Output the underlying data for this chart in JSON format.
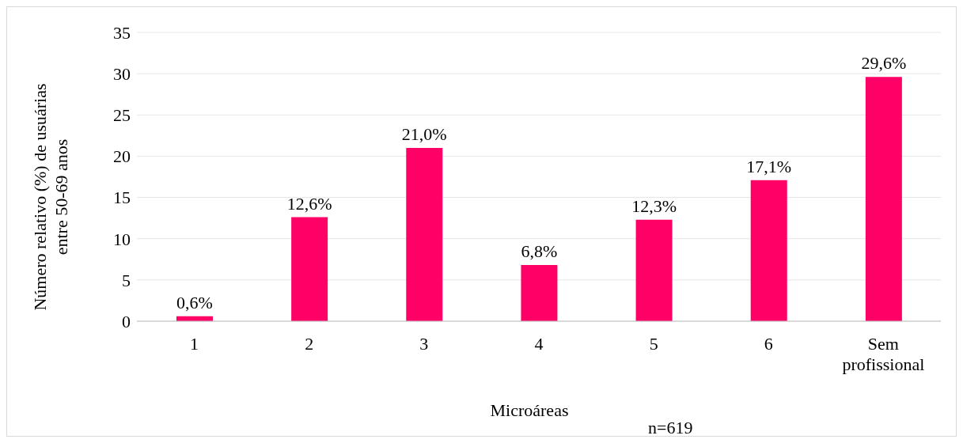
{
  "chart_data": {
    "type": "bar",
    "xlabel": "Microáreas",
    "ylabel": "Número relativo (%) de usuárias entre 50-69 anos",
    "categories": [
      "1",
      "2",
      "3",
      "4",
      "5",
      "6",
      "Sem profissional"
    ],
    "values": [
      0.6,
      12.6,
      21.0,
      6.8,
      12.3,
      17.1,
      29.6
    ],
    "value_labels": [
      "0,6%",
      "12,6%",
      "21,0%",
      "6,8%",
      "12,3%",
      "17,1%",
      "29,6%"
    ],
    "color": "#ff0066",
    "ylim": [
      0,
      35
    ],
    "yticks": [
      0,
      5,
      10,
      15,
      20,
      25,
      30,
      35
    ],
    "grid": "y",
    "legend": false,
    "annotations": [
      "n=619"
    ]
  }
}
